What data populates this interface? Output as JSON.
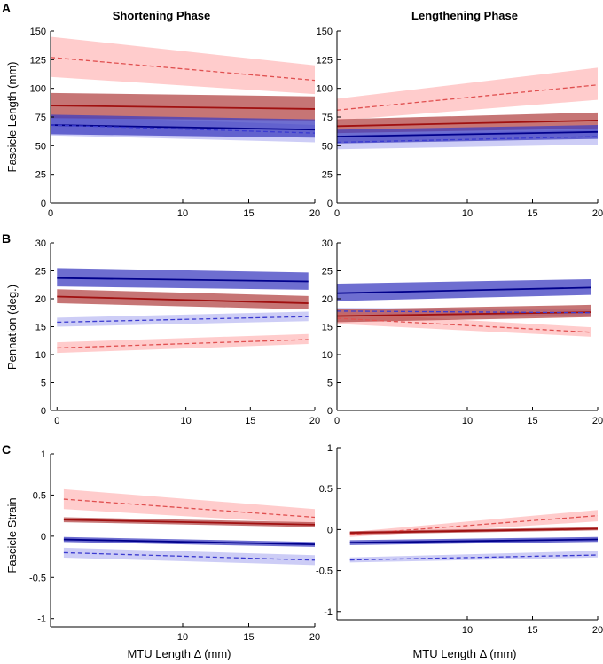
{
  "figure": {
    "column_titles": [
      "Shortening Phase",
      "Lengthening Phase"
    ],
    "row_labels": [
      "A",
      "B",
      "C"
    ],
    "xlabel": "MTU Length Δ (mm)"
  },
  "colors": {
    "red_dark": "#a01010",
    "red_light": "#e05050",
    "red_band_dark": "#b34747",
    "red_band_light": "#ffc7c7",
    "blue_dark": "#00008b",
    "blue_light": "#3b3bd0",
    "blue_band_dark": "#3e3ec0",
    "blue_band_light": "#c8c8f5"
  },
  "chart_data": [
    {
      "id": "A-shortening",
      "type": "line",
      "title": "Shortening Phase",
      "ylabel": "Fascicle Length (mm)",
      "xlim": [
        0,
        20
      ],
      "ylim": [
        0,
        150
      ],
      "xticks": [
        0,
        10,
        15,
        20
      ],
      "yticks": [
        0,
        25,
        50,
        75,
        100,
        125,
        150
      ],
      "series": [
        {
          "name": "red-dashed",
          "style": "dashed",
          "color": "red_light",
          "band": "red_band_light",
          "x": [
            0,
            20
          ],
          "y": [
            127,
            107
          ],
          "lo": [
            110,
            95
          ],
          "hi": [
            145,
            120
          ]
        },
        {
          "name": "red-solid",
          "style": "solid",
          "color": "red_dark",
          "band": "red_band_dark",
          "x": [
            0,
            20
          ],
          "y": [
            85,
            82
          ],
          "lo": [
            74,
            72
          ],
          "hi": [
            96,
            93
          ]
        },
        {
          "name": "blue-solid",
          "style": "solid",
          "color": "blue_dark",
          "band": "blue_band_dark",
          "x": [
            0,
            20
          ],
          "y": [
            68,
            64
          ],
          "lo": [
            60,
            57
          ],
          "hi": [
            77,
            73
          ]
        },
        {
          "name": "blue-dashed",
          "style": "dashed",
          "color": "blue_light",
          "band": "blue_band_light",
          "x": [
            0,
            20
          ],
          "y": [
            68,
            61
          ],
          "lo": [
            59,
            53
          ],
          "hi": [
            76,
            68
          ]
        }
      ]
    },
    {
      "id": "A-lengthening",
      "type": "line",
      "title": "Lengthening Phase",
      "ylabel": "",
      "xlim": [
        0,
        20
      ],
      "ylim": [
        0,
        150
      ],
      "xticks": [
        0,
        10,
        15,
        20
      ],
      "yticks": [
        0,
        25,
        50,
        75,
        100,
        125,
        150
      ],
      "series": [
        {
          "name": "red-dashed",
          "style": "dashed",
          "color": "red_light",
          "band": "red_band_light",
          "x": [
            0,
            20
          ],
          "y": [
            81,
            103
          ],
          "lo": [
            72,
            90
          ],
          "hi": [
            91,
            118
          ]
        },
        {
          "name": "red-solid",
          "style": "solid",
          "color": "red_dark",
          "band": "red_band_dark",
          "x": [
            0,
            20
          ],
          "y": [
            67,
            72
          ],
          "lo": [
            61,
            65
          ],
          "hi": [
            73,
            79
          ]
        },
        {
          "name": "blue-solid",
          "style": "solid",
          "color": "blue_dark",
          "band": "blue_band_dark",
          "x": [
            0,
            20
          ],
          "y": [
            58,
            62
          ],
          "lo": [
            52,
            56
          ],
          "hi": [
            64,
            68
          ]
        },
        {
          "name": "blue-dashed",
          "style": "dashed",
          "color": "blue_light",
          "band": "blue_band_light",
          "x": [
            0,
            20
          ],
          "y": [
            53,
            58
          ],
          "lo": [
            47,
            51
          ],
          "hi": [
            59,
            64
          ]
        }
      ]
    },
    {
      "id": "B-shortening",
      "type": "line",
      "title": "",
      "ylabel": "Pennation (deg.)",
      "xlim": [
        -0.5,
        20
      ],
      "ylim": [
        0,
        30
      ],
      "xticks": [
        0,
        10,
        15,
        20
      ],
      "yticks": [
        0,
        5,
        10,
        15,
        20,
        25,
        30
      ],
      "series": [
        {
          "name": "blue-solid",
          "style": "solid",
          "color": "blue_dark",
          "band": "blue_band_dark",
          "x": [
            0,
            19.5
          ],
          "y": [
            23.7,
            23.1
          ],
          "lo": [
            22.2,
            21.6
          ],
          "hi": [
            25.5,
            24.7
          ]
        },
        {
          "name": "red-solid",
          "style": "solid",
          "color": "red_dark",
          "band": "red_band_dark",
          "x": [
            0,
            19.5
          ],
          "y": [
            20.4,
            19.2
          ],
          "lo": [
            19.2,
            18.1
          ],
          "hi": [
            21.7,
            20.5
          ]
        },
        {
          "name": "blue-dashed",
          "style": "dashed",
          "color": "blue_light",
          "band": "blue_band_light",
          "x": [
            0,
            19.5
          ],
          "y": [
            15.8,
            16.8
          ],
          "lo": [
            15.0,
            16.0
          ],
          "hi": [
            16.6,
            17.7
          ]
        },
        {
          "name": "red-dashed",
          "style": "dashed",
          "color": "red_light",
          "band": "red_band_light",
          "x": [
            0,
            19.5
          ],
          "y": [
            11.2,
            12.7
          ],
          "lo": [
            10.3,
            11.9
          ],
          "hi": [
            12.2,
            13.7
          ]
        }
      ]
    },
    {
      "id": "B-lengthening",
      "type": "line",
      "title": "",
      "ylabel": "",
      "xlim": [
        0,
        20
      ],
      "ylim": [
        0,
        30
      ],
      "xticks": [
        0,
        10,
        15,
        20
      ],
      "yticks": [
        0,
        5,
        10,
        15,
        20,
        25,
        30
      ],
      "series": [
        {
          "name": "blue-solid",
          "style": "solid",
          "color": "blue_dark",
          "band": "blue_band_dark",
          "x": [
            0,
            19.5
          ],
          "y": [
            21.0,
            22.0
          ],
          "lo": [
            19.6,
            20.7
          ],
          "hi": [
            22.7,
            23.5
          ]
        },
        {
          "name": "red-solid",
          "style": "solid",
          "color": "red_dark",
          "band": "red_band_dark",
          "x": [
            0,
            19.5
          ],
          "y": [
            16.9,
            17.6
          ],
          "lo": [
            15.8,
            16.7
          ],
          "hi": [
            18.1,
            18.9
          ]
        },
        {
          "name": "blue-dashed",
          "style": "dashed",
          "color": "blue_light",
          "band": "blue_band_light",
          "x": [
            0,
            19.5
          ],
          "y": [
            17.8,
            17.5
          ],
          "lo": [
            17.2,
            16.8
          ],
          "hi": [
            18.4,
            18.1
          ]
        },
        {
          "name": "red-dashed",
          "style": "dashed",
          "color": "red_light",
          "band": "red_band_light",
          "x": [
            0,
            19.5
          ],
          "y": [
            16.5,
            14.0
          ],
          "lo": [
            15.5,
            13.2
          ],
          "hi": [
            17.5,
            14.9
          ]
        }
      ]
    },
    {
      "id": "C-shortening",
      "type": "line",
      "title": "",
      "ylabel": "Fascicle Strain",
      "xlim": [
        0,
        20
      ],
      "ylim": [
        -1.1,
        1
      ],
      "xticks": [
        10,
        15,
        20
      ],
      "yticks": [
        -1,
        -0.5,
        0,
        0.5,
        1
      ],
      "series": [
        {
          "name": "red-dashed",
          "style": "dashed",
          "color": "red_light",
          "band": "red_band_light",
          "x": [
            1,
            20
          ],
          "y": [
            0.45,
            0.23
          ],
          "lo": [
            0.33,
            0.15
          ],
          "hi": [
            0.57,
            0.33
          ]
        },
        {
          "name": "red-solid",
          "style": "solid",
          "color": "red_dark",
          "band": "red_band_dark",
          "x": [
            1,
            20
          ],
          "y": [
            0.2,
            0.14
          ],
          "lo": [
            0.17,
            0.11
          ],
          "hi": [
            0.23,
            0.17
          ]
        },
        {
          "name": "blue-solid",
          "style": "solid",
          "color": "blue_dark",
          "band": "blue_band_dark",
          "x": [
            1,
            20
          ],
          "y": [
            -0.04,
            -0.1
          ],
          "lo": [
            -0.07,
            -0.13
          ],
          "hi": [
            -0.01,
            -0.07
          ]
        },
        {
          "name": "blue-dashed",
          "style": "dashed",
          "color": "blue_light",
          "band": "blue_band_light",
          "x": [
            1,
            20
          ],
          "y": [
            -0.2,
            -0.29
          ],
          "lo": [
            -0.26,
            -0.35
          ],
          "hi": [
            -0.14,
            -0.23
          ]
        }
      ]
    },
    {
      "id": "C-lengthening",
      "type": "line",
      "title": "",
      "ylabel": "",
      "xlim": [
        0,
        20
      ],
      "ylim": [
        -1.1,
        1
      ],
      "xticks": [
        10,
        15,
        20
      ],
      "yticks": [
        -1,
        -0.5,
        0,
        0.5,
        1
      ],
      "series": [
        {
          "name": "red-dashed",
          "style": "dashed",
          "color": "red_light",
          "band": "red_band_light",
          "x": [
            1,
            20
          ],
          "y": [
            -0.06,
            0.17
          ],
          "lo": [
            -0.09,
            0.1
          ],
          "hi": [
            -0.03,
            0.24
          ]
        },
        {
          "name": "red-solid",
          "style": "solid",
          "color": "red_dark",
          "band": "red_band_dark",
          "x": [
            1,
            20
          ],
          "y": [
            -0.04,
            0.01
          ],
          "lo": [
            -0.06,
            -0.01
          ],
          "hi": [
            -0.02,
            0.03
          ]
        },
        {
          "name": "blue-solid",
          "style": "solid",
          "color": "blue_dark",
          "band": "blue_band_dark",
          "x": [
            1,
            20
          ],
          "y": [
            -0.16,
            -0.12
          ],
          "lo": [
            -0.19,
            -0.15
          ],
          "hi": [
            -0.13,
            -0.09
          ]
        },
        {
          "name": "blue-dashed",
          "style": "dashed",
          "color": "blue_light",
          "band": "blue_band_light",
          "x": [
            1,
            20
          ],
          "y": [
            -0.37,
            -0.31
          ],
          "lo": [
            -0.4,
            -0.34
          ],
          "hi": [
            -0.34,
            -0.26
          ]
        }
      ]
    }
  ]
}
